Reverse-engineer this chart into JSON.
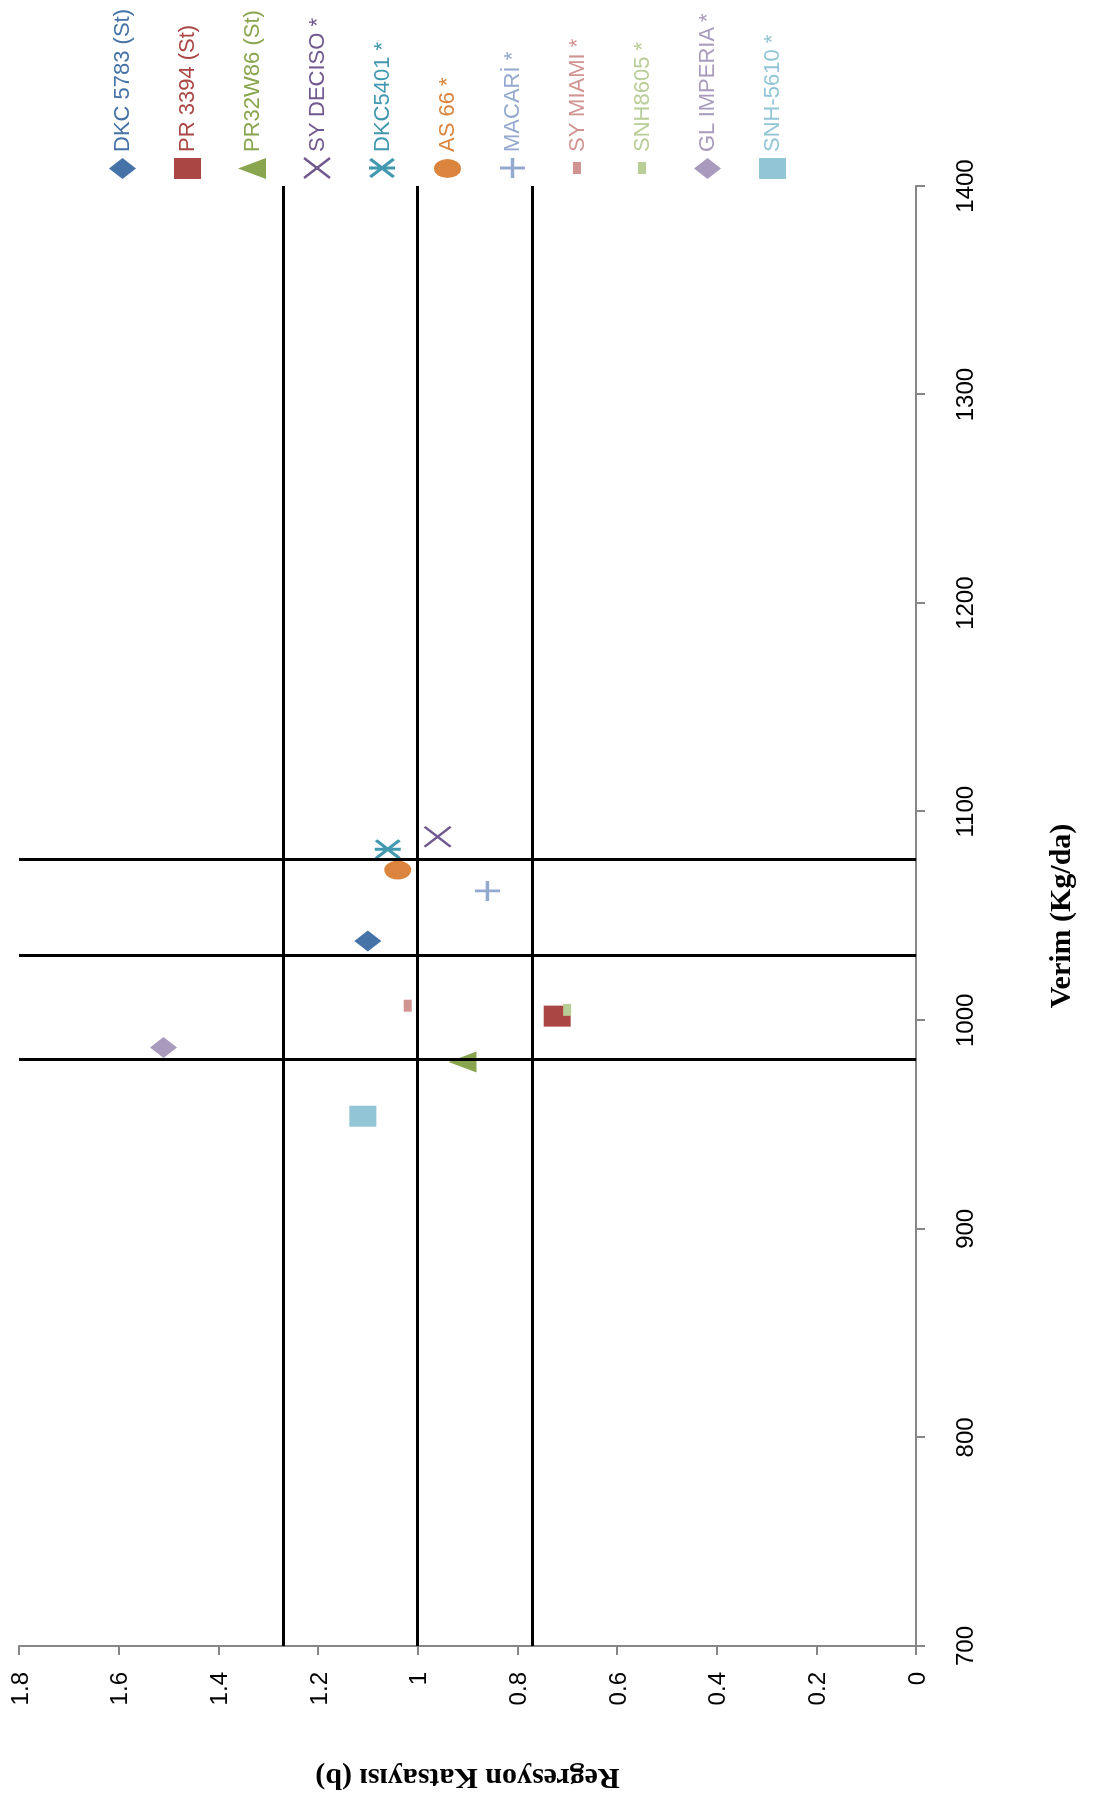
{
  "chart_data": {
    "type": "scatter",
    "xlabel": "Regresyon Katsayısı (b)",
    "ylabel": "Verim (Kg/da)",
    "xlim": [
      1.8,
      0
    ],
    "xticks": [
      0,
      0.2,
      0.4,
      0.6,
      0.8,
      1,
      1.2,
      1.4,
      1.6,
      1.8
    ],
    "ylim": [
      700,
      1400
    ],
    "yticks": [
      700,
      800,
      900,
      1000,
      1100,
      1200,
      1300,
      1400
    ],
    "legend": "top",
    "series": [
      {
        "name": "DKC 5783 (St)",
        "color": "#4572a7",
        "marker": "diamond",
        "x": [
          1.1
        ],
        "values": [
          1038
        ]
      },
      {
        "name": "PR 3394 (St)",
        "color": "#aa4643",
        "marker": "square",
        "x": [
          0.72
        ],
        "values": [
          1002
        ]
      },
      {
        "name": "PR32W86 (St)",
        "color": "#89a54e",
        "marker": "triangle",
        "x": [
          0.91
        ],
        "values": [
          980
        ]
      },
      {
        "name": "SY DECISO *",
        "color": "#71588f",
        "marker": "x",
        "x": [
          0.96
        ],
        "values": [
          1088
        ]
      },
      {
        "name": "DKC5401 *",
        "color": "#4198af",
        "marker": "star",
        "x": [
          1.06
        ],
        "values": [
          1082
        ]
      },
      {
        "name": "AS 66 *",
        "color": "#db843d",
        "marker": "circle",
        "x": [
          1.04
        ],
        "values": [
          1072
        ]
      },
      {
        "name": "MACARİ *",
        "color": "#93a9cf",
        "marker": "cross",
        "x": [
          0.86
        ],
        "values": [
          1062
        ]
      },
      {
        "name": "SY MIAMI *",
        "color": "#d19392",
        "x": [
          1.02
        ],
        "values": [
          1007
        ]
      },
      {
        "name": "SNH8605 *",
        "color": "#b9cd96",
        "x": [
          0.7
        ],
        "values": [
          1005
        ]
      },
      {
        "name": "GL IMPERIA *",
        "color": "#a99bbd",
        "marker": "diamond",
        "x": [
          1.51
        ],
        "values": [
          987
        ]
      },
      {
        "name": "SNH-5610 *",
        "color": "#92c5d6",
        "marker": "square",
        "x": [
          1.11
        ],
        "values": [
          954
        ]
      }
    ],
    "ref_lines": [
      {
        "axis": "x",
        "value": 1.27,
        "color": "#000000"
      },
      {
        "axis": "x",
        "value": 1,
        "color": "#000000"
      },
      {
        "axis": "x",
        "value": 0.77,
        "color": "#000000"
      },
      {
        "axis": "y",
        "value": 1077,
        "color": "#000000"
      },
      {
        "axis": "y",
        "value": 1031,
        "color": "#000000"
      },
      {
        "axis": "y",
        "value": 981,
        "color": "#000000"
      }
    ]
  }
}
